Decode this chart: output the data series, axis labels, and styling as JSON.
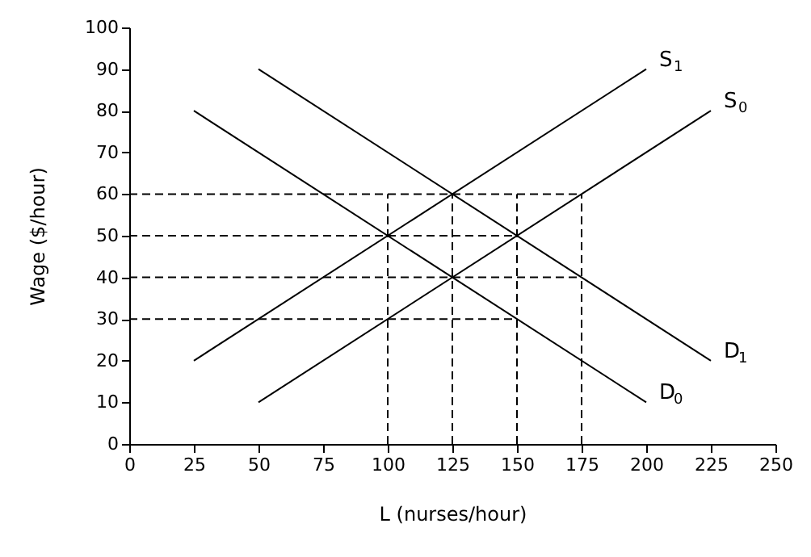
{
  "chart_data": {
    "type": "line",
    "xlabel": "L (nurses/hour)",
    "ylabel": "Wage ($/hour)",
    "xlim": [
      0,
      250
    ],
    "xticks": [
      0,
      25,
      50,
      75,
      100,
      125,
      150,
      175,
      200,
      225,
      250
    ],
    "ylim": [
      0,
      100
    ],
    "yticks": [
      0,
      10,
      20,
      30,
      40,
      50,
      60,
      70,
      80,
      90,
      100
    ],
    "grid": false,
    "marker": "none",
    "series": [
      {
        "name": "S$_{1}$",
        "color": "#000000",
        "line_style": "solid",
        "x": [
          25,
          200
        ],
        "values": [
          20,
          90
        ]
      },
      {
        "name": "S$_{0}$",
        "color": "#000000",
        "line_style": "solid",
        "x": [
          50,
          225
        ],
        "values": [
          10,
          80
        ]
      },
      {
        "name": "D$_{1}$",
        "color": "#000000",
        "line_style": "solid",
        "x": [
          50,
          225
        ],
        "values": [
          90,
          20
        ]
      },
      {
        "name": "D$_{0}$",
        "color": "#000000",
        "line_style": "solid",
        "x": [
          25,
          200
        ],
        "values": [
          80,
          10
        ]
      },
      {
        "color": "#000000",
        "line_style": "dashed",
        "x": [
          0,
          175
        ],
        "values": [
          60,
          60
        ]
      },
      {
        "color": "#000000",
        "line_style": "dashed",
        "x": [
          0,
          150
        ],
        "values": [
          50,
          50
        ]
      },
      {
        "color": "#000000",
        "line_style": "dashed",
        "x": [
          0,
          175
        ],
        "values": [
          40,
          40
        ]
      },
      {
        "color": "#000000",
        "line_style": "dashed",
        "x": [
          0,
          150
        ],
        "values": [
          30,
          30
        ]
      },
      {
        "color": "#000000",
        "line_style": "dashed",
        "x": [
          100,
          100
        ],
        "values": [
          0,
          60
        ]
      },
      {
        "color": "#000000",
        "line_style": "dashed",
        "x": [
          125,
          125
        ],
        "values": [
          0,
          60
        ]
      },
      {
        "color": "#000000",
        "line_style": "dashed",
        "x": [
          150,
          150
        ],
        "values": [
          0,
          60
        ]
      },
      {
        "color": "#000000",
        "line_style": "dashed",
        "x": [
          175,
          175
        ],
        "values": [
          0,
          60
        ]
      }
    ]
  }
}
